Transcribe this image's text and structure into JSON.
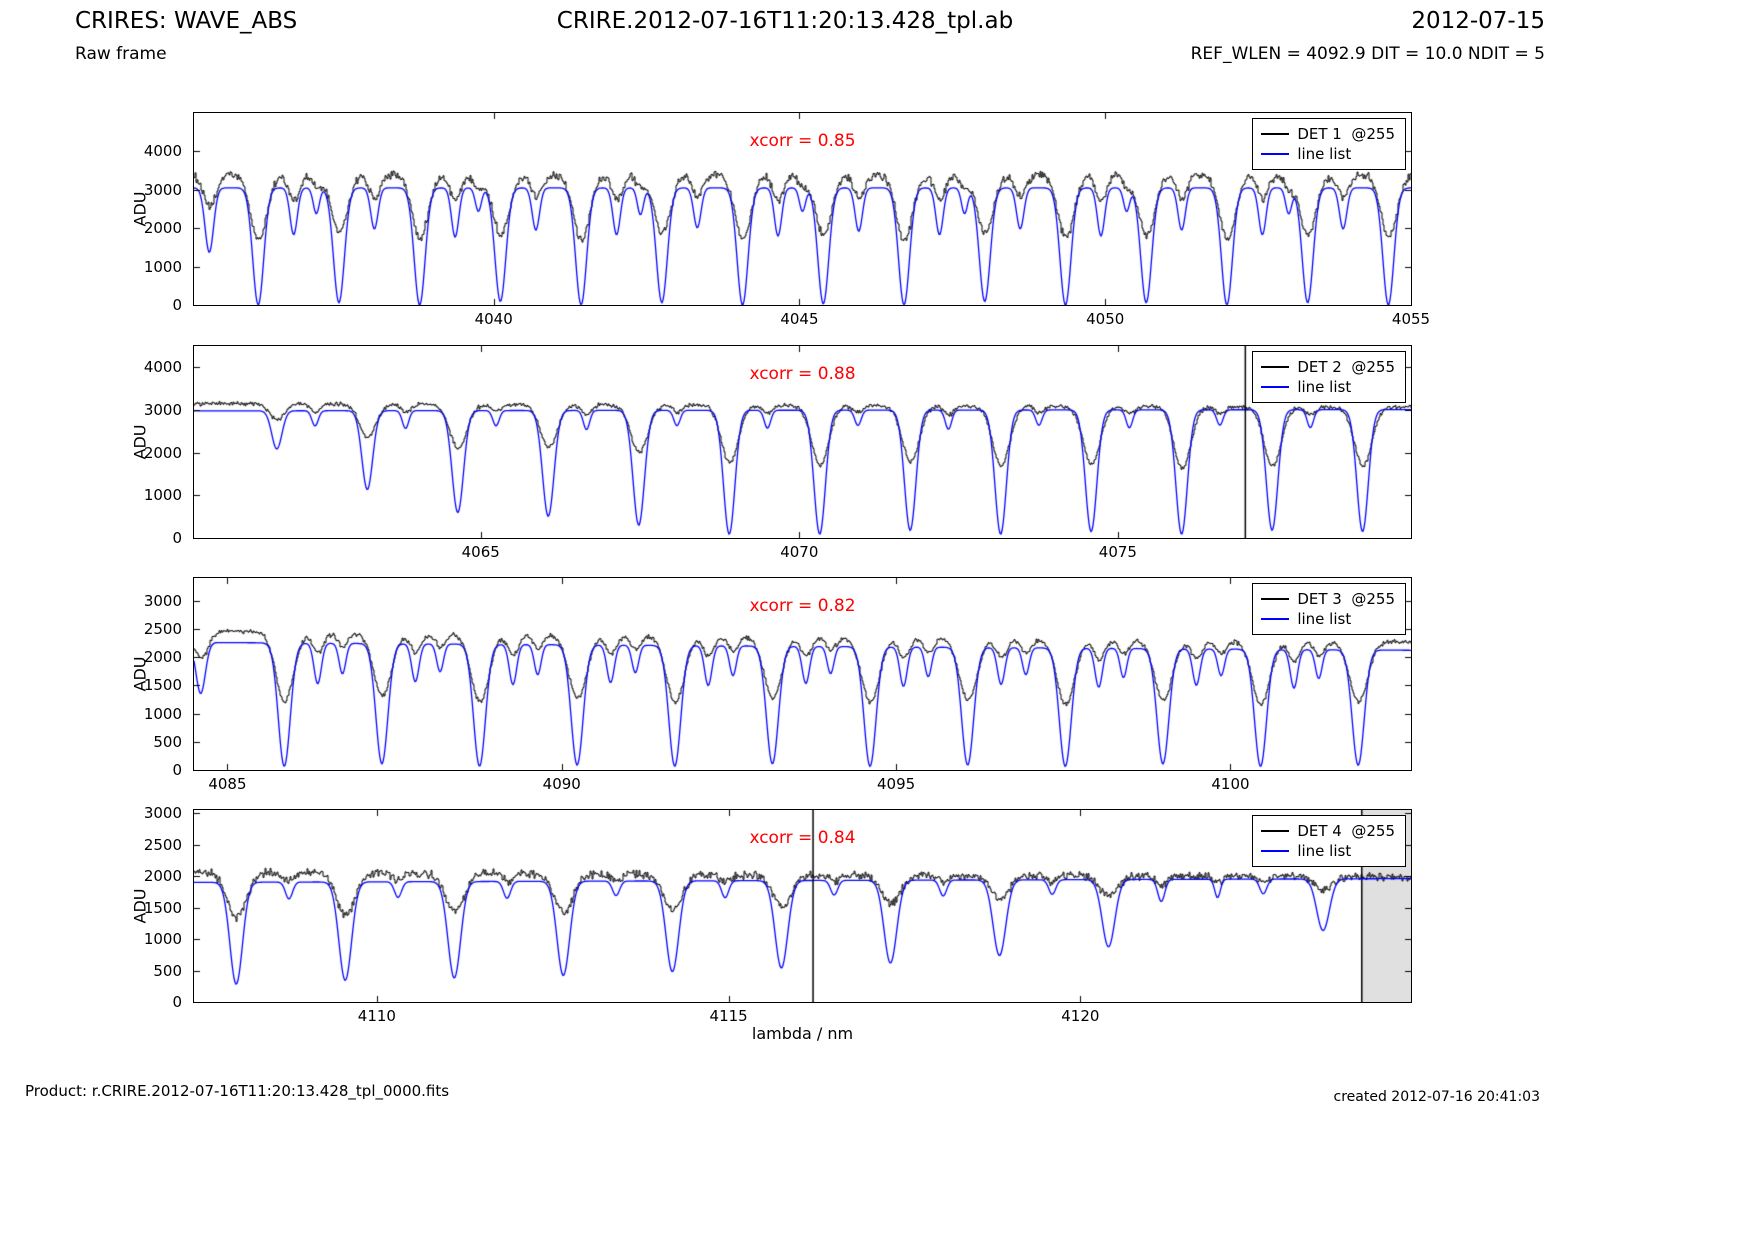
{
  "header": {
    "app_title": "CRIRES: WAVE_ABS",
    "frame_type": "Raw frame",
    "file_title": "CRIRE.2012-07-16T11:20:13.428_tpl.ab",
    "date": "2012-07-15",
    "params": "REF_WLEN = 4092.9 DIT = 10.0 NDIT = 5"
  },
  "footer": {
    "product": "Product: r.CRIRE.2012-07-16T11:20:13.428_tpl_0000.fits",
    "created": "created 2012-07-16 20:41:03"
  },
  "colors": {
    "spectrum_black": "#000000",
    "linelist_blue": "#0000ff",
    "xcorr_red": "#ff0000",
    "shaded_grey": "#e0e0e0",
    "background": "#ffffff"
  },
  "chart_data": [
    {
      "type": "line",
      "detector": "DET 1",
      "legend": [
        "DET 1  @255",
        "line list"
      ],
      "xcorr": 0.85,
      "xcorr_label": "xcorr = 0.85",
      "ylabel": "ADU",
      "xlabel": "",
      "xlim": [
        4035.1,
        4055.0
      ],
      "ylim": [
        0,
        5000
      ],
      "xticks": [
        4040,
        4045,
        4050,
        4055
      ],
      "yticks": [
        0,
        1000,
        2000,
        3000,
        4000
      ],
      "continuum_black": [
        3400,
        3400
      ],
      "continuum_blue": [
        3050,
        3050
      ],
      "noise": 130,
      "lines_format": "center_nm, linelist_depth_frac, spectrum_depth_frac, sigma_nm",
      "absorption_lines": [
        [
          4035.35,
          0.55,
          0.25,
          0.07
        ],
        [
          4036.15,
          1.0,
          0.5,
          0.09
        ],
        [
          4037.47,
          0.98,
          0.44,
          0.09
        ],
        [
          4038.79,
          1.0,
          0.48,
          0.09
        ],
        [
          4040.11,
          0.97,
          0.46,
          0.09
        ],
        [
          4041.43,
          1.0,
          0.5,
          0.09
        ],
        [
          4042.75,
          0.98,
          0.45,
          0.09
        ],
        [
          4044.07,
          1.0,
          0.48,
          0.09
        ],
        [
          4045.39,
          0.99,
          0.47,
          0.09
        ],
        [
          4046.71,
          1.0,
          0.5,
          0.09
        ],
        [
          4048.03,
          0.97,
          0.45,
          0.09
        ],
        [
          4049.35,
          1.0,
          0.48,
          0.09
        ],
        [
          4050.67,
          0.98,
          0.46,
          0.09
        ],
        [
          4051.99,
          1.0,
          0.49,
          0.09
        ],
        [
          4053.31,
          0.98,
          0.46,
          0.09
        ],
        [
          4054.63,
          1.0,
          0.48,
          0.09
        ],
        [
          4036.73,
          0.4,
          0.2,
          0.06
        ],
        [
          4038.05,
          0.35,
          0.18,
          0.06
        ],
        [
          4039.37,
          0.42,
          0.2,
          0.06
        ],
        [
          4040.69,
          0.36,
          0.17,
          0.06
        ],
        [
          4042.01,
          0.4,
          0.2,
          0.06
        ],
        [
          4043.33,
          0.34,
          0.16,
          0.06
        ],
        [
          4044.65,
          0.41,
          0.2,
          0.06
        ],
        [
          4045.97,
          0.37,
          0.18,
          0.06
        ],
        [
          4047.29,
          0.4,
          0.19,
          0.06
        ],
        [
          4048.61,
          0.35,
          0.17,
          0.06
        ],
        [
          4049.93,
          0.41,
          0.2,
          0.06
        ],
        [
          4051.25,
          0.36,
          0.18,
          0.06
        ],
        [
          4052.57,
          0.4,
          0.19,
          0.06
        ],
        [
          4053.89,
          0.35,
          0.17,
          0.06
        ],
        [
          4037.1,
          0.22,
          0.1,
          0.05
        ],
        [
          4039.75,
          0.2,
          0.09,
          0.05
        ],
        [
          4042.4,
          0.23,
          0.1,
          0.05
        ],
        [
          4045.05,
          0.2,
          0.09,
          0.05
        ],
        [
          4047.7,
          0.22,
          0.1,
          0.05
        ],
        [
          4050.35,
          0.2,
          0.09,
          0.05
        ],
        [
          4053.0,
          0.22,
          0.1,
          0.05
        ]
      ],
      "vlines": [],
      "shaded_regions": []
    },
    {
      "type": "line",
      "detector": "DET 2",
      "legend": [
        "DET 2  @255",
        "line list"
      ],
      "xcorr": 0.88,
      "xcorr_label": "xcorr = 0.88",
      "ylabel": "ADU",
      "xlabel": "",
      "xlim": [
        4060.5,
        4079.6
      ],
      "ylim": [
        0,
        4500
      ],
      "xticks": [
        4065,
        4070,
        4075
      ],
      "yticks": [
        0,
        1000,
        2000,
        3000,
        4000
      ],
      "continuum_black": [
        3150,
        3060
      ],
      "continuum_blue": [
        2980,
        3010
      ],
      "noise": 60,
      "lines_format": "center_nm, linelist_depth_frac, spectrum_depth_frac, sigma_nm",
      "absorption_lines": [
        [
          4061.8,
          0.3,
          0.12,
          0.08
        ],
        [
          4063.22,
          0.62,
          0.25,
          0.085
        ],
        [
          4064.64,
          0.8,
          0.33,
          0.09
        ],
        [
          4066.06,
          0.83,
          0.32,
          0.09
        ],
        [
          4067.48,
          0.9,
          0.36,
          0.09
        ],
        [
          4068.9,
          0.97,
          0.43,
          0.09
        ],
        [
          4070.32,
          0.97,
          0.45,
          0.09
        ],
        [
          4071.74,
          0.94,
          0.42,
          0.09
        ],
        [
          4073.16,
          0.97,
          0.45,
          0.09
        ],
        [
          4074.58,
          0.95,
          0.44,
          0.09
        ],
        [
          4076.0,
          0.97,
          0.47,
          0.09
        ],
        [
          4077.42,
          0.94,
          0.45,
          0.09
        ],
        [
          4078.84,
          0.95,
          0.45,
          0.09
        ],
        [
          4062.4,
          0.12,
          0.06,
          0.05
        ],
        [
          4063.82,
          0.14,
          0.06,
          0.05
        ],
        [
          4065.24,
          0.12,
          0.05,
          0.05
        ],
        [
          4066.66,
          0.15,
          0.07,
          0.05
        ],
        [
          4068.08,
          0.12,
          0.05,
          0.05
        ],
        [
          4069.5,
          0.14,
          0.06,
          0.05
        ],
        [
          4070.92,
          0.12,
          0.05,
          0.05
        ],
        [
          4072.34,
          0.15,
          0.07,
          0.05
        ],
        [
          4073.76,
          0.12,
          0.05,
          0.05
        ],
        [
          4075.18,
          0.14,
          0.06,
          0.05
        ],
        [
          4076.6,
          0.12,
          0.05,
          0.05
        ],
        [
          4078.02,
          0.14,
          0.06,
          0.05
        ]
      ],
      "vlines": [
        4077.0
      ],
      "shaded_regions": []
    },
    {
      "type": "line",
      "detector": "DET 3",
      "legend": [
        "DET 3  @255",
        "line list"
      ],
      "xcorr": 0.82,
      "xcorr_label": "xcorr = 0.82",
      "ylabel": "ADU",
      "xlabel": "",
      "xlim": [
        4084.5,
        4102.7
      ],
      "ylim": [
        0,
        3400
      ],
      "xticks": [
        4085,
        4090,
        4095,
        4100
      ],
      "yticks": [
        0,
        500,
        1000,
        1500,
        2000,
        2500,
        3000
      ],
      "continuum_black": [
        2460,
        2260
      ],
      "continuum_blue": [
        2260,
        2120
      ],
      "noise": 50,
      "lines_format": "center_nm, linelist_depth_frac, spectrum_depth_frac, sigma_nm",
      "absorption_lines": [
        [
          4084.6,
          0.4,
          0.2,
          0.07
        ],
        [
          4085.85,
          0.97,
          0.5,
          0.09
        ],
        [
          4087.31,
          0.95,
          0.46,
          0.09
        ],
        [
          4088.77,
          0.97,
          0.5,
          0.09
        ],
        [
          4090.23,
          0.96,
          0.47,
          0.09
        ],
        [
          4091.69,
          0.97,
          0.5,
          0.09
        ],
        [
          4093.15,
          0.95,
          0.46,
          0.09
        ],
        [
          4094.61,
          0.97,
          0.49,
          0.09
        ],
        [
          4096.07,
          0.96,
          0.47,
          0.09
        ],
        [
          4097.53,
          0.97,
          0.5,
          0.09
        ],
        [
          4098.99,
          0.95,
          0.46,
          0.09
        ],
        [
          4100.45,
          0.97,
          0.49,
          0.09
        ],
        [
          4101.91,
          0.96,
          0.47,
          0.09
        ],
        [
          4086.35,
          0.32,
          0.15,
          0.055
        ],
        [
          4086.72,
          0.24,
          0.11,
          0.05
        ],
        [
          4087.81,
          0.3,
          0.14,
          0.055
        ],
        [
          4088.18,
          0.22,
          0.1,
          0.05
        ],
        [
          4089.27,
          0.32,
          0.15,
          0.055
        ],
        [
          4089.64,
          0.24,
          0.11,
          0.05
        ],
        [
          4090.73,
          0.3,
          0.14,
          0.055
        ],
        [
          4091.1,
          0.22,
          0.1,
          0.05
        ],
        [
          4092.19,
          0.32,
          0.15,
          0.055
        ],
        [
          4092.56,
          0.24,
          0.11,
          0.05
        ],
        [
          4093.65,
          0.3,
          0.14,
          0.055
        ],
        [
          4094.02,
          0.22,
          0.1,
          0.05
        ],
        [
          4095.11,
          0.32,
          0.15,
          0.055
        ],
        [
          4095.48,
          0.24,
          0.11,
          0.05
        ],
        [
          4096.57,
          0.3,
          0.14,
          0.055
        ],
        [
          4096.94,
          0.22,
          0.1,
          0.05
        ],
        [
          4098.03,
          0.32,
          0.15,
          0.055
        ],
        [
          4098.4,
          0.24,
          0.11,
          0.05
        ],
        [
          4099.49,
          0.3,
          0.14,
          0.055
        ],
        [
          4099.86,
          0.22,
          0.1,
          0.05
        ],
        [
          4100.95,
          0.32,
          0.15,
          0.055
        ],
        [
          4101.32,
          0.24,
          0.11,
          0.05
        ]
      ],
      "vlines": [],
      "shaded_regions": []
    },
    {
      "type": "line",
      "detector": "DET 4",
      "legend": [
        "DET 4  @255",
        "line list"
      ],
      "xcorr": 0.84,
      "xcorr_label": "xcorr = 0.84",
      "ylabel": "ADU",
      "xlabel": "lambda / nm",
      "xlim": [
        4107.4,
        4124.7
      ],
      "ylim": [
        0,
        3050
      ],
      "xticks": [
        4110,
        4115,
        4120
      ],
      "yticks": [
        0,
        500,
        1000,
        1500,
        2000,
        2500,
        3000
      ],
      "continuum_black": [
        2060,
        1985
      ],
      "continuum_blue": [
        1900,
        1960
      ],
      "noise": 80,
      "lines_format": "center_nm, linelist_depth_frac, spectrum_depth_frac, sigma_nm",
      "absorption_lines": [
        [
          4108.0,
          0.85,
          0.35,
          0.09
        ],
        [
          4109.55,
          0.82,
          0.32,
          0.09
        ],
        [
          4111.1,
          0.8,
          0.3,
          0.09
        ],
        [
          4112.65,
          0.78,
          0.3,
          0.09
        ],
        [
          4114.2,
          0.75,
          0.28,
          0.09
        ],
        [
          4115.75,
          0.72,
          0.25,
          0.09
        ],
        [
          4117.3,
          0.68,
          0.22,
          0.09
        ],
        [
          4118.85,
          0.62,
          0.18,
          0.09
        ],
        [
          4120.4,
          0.55,
          0.15,
          0.09
        ],
        [
          4123.45,
          0.42,
          0.1,
          0.09
        ],
        [
          4108.75,
          0.14,
          0.06,
          0.05
        ],
        [
          4110.3,
          0.13,
          0.05,
          0.05
        ],
        [
          4111.85,
          0.14,
          0.06,
          0.05
        ],
        [
          4113.4,
          0.12,
          0.05,
          0.05
        ],
        [
          4114.95,
          0.14,
          0.06,
          0.05
        ],
        [
          4116.5,
          0.12,
          0.05,
          0.05
        ],
        [
          4118.05,
          0.13,
          0.05,
          0.05
        ],
        [
          4119.6,
          0.12,
          0.05,
          0.05
        ],
        [
          4121.15,
          0.18,
          0.07,
          0.05
        ],
        [
          4121.95,
          0.15,
          0.06,
          0.04
        ],
        [
          4122.6,
          0.12,
          0.05,
          0.05
        ]
      ],
      "vlines": [
        4116.2
      ],
      "shaded_regions": [
        [
          4124.0,
          4124.7
        ]
      ]
    }
  ]
}
